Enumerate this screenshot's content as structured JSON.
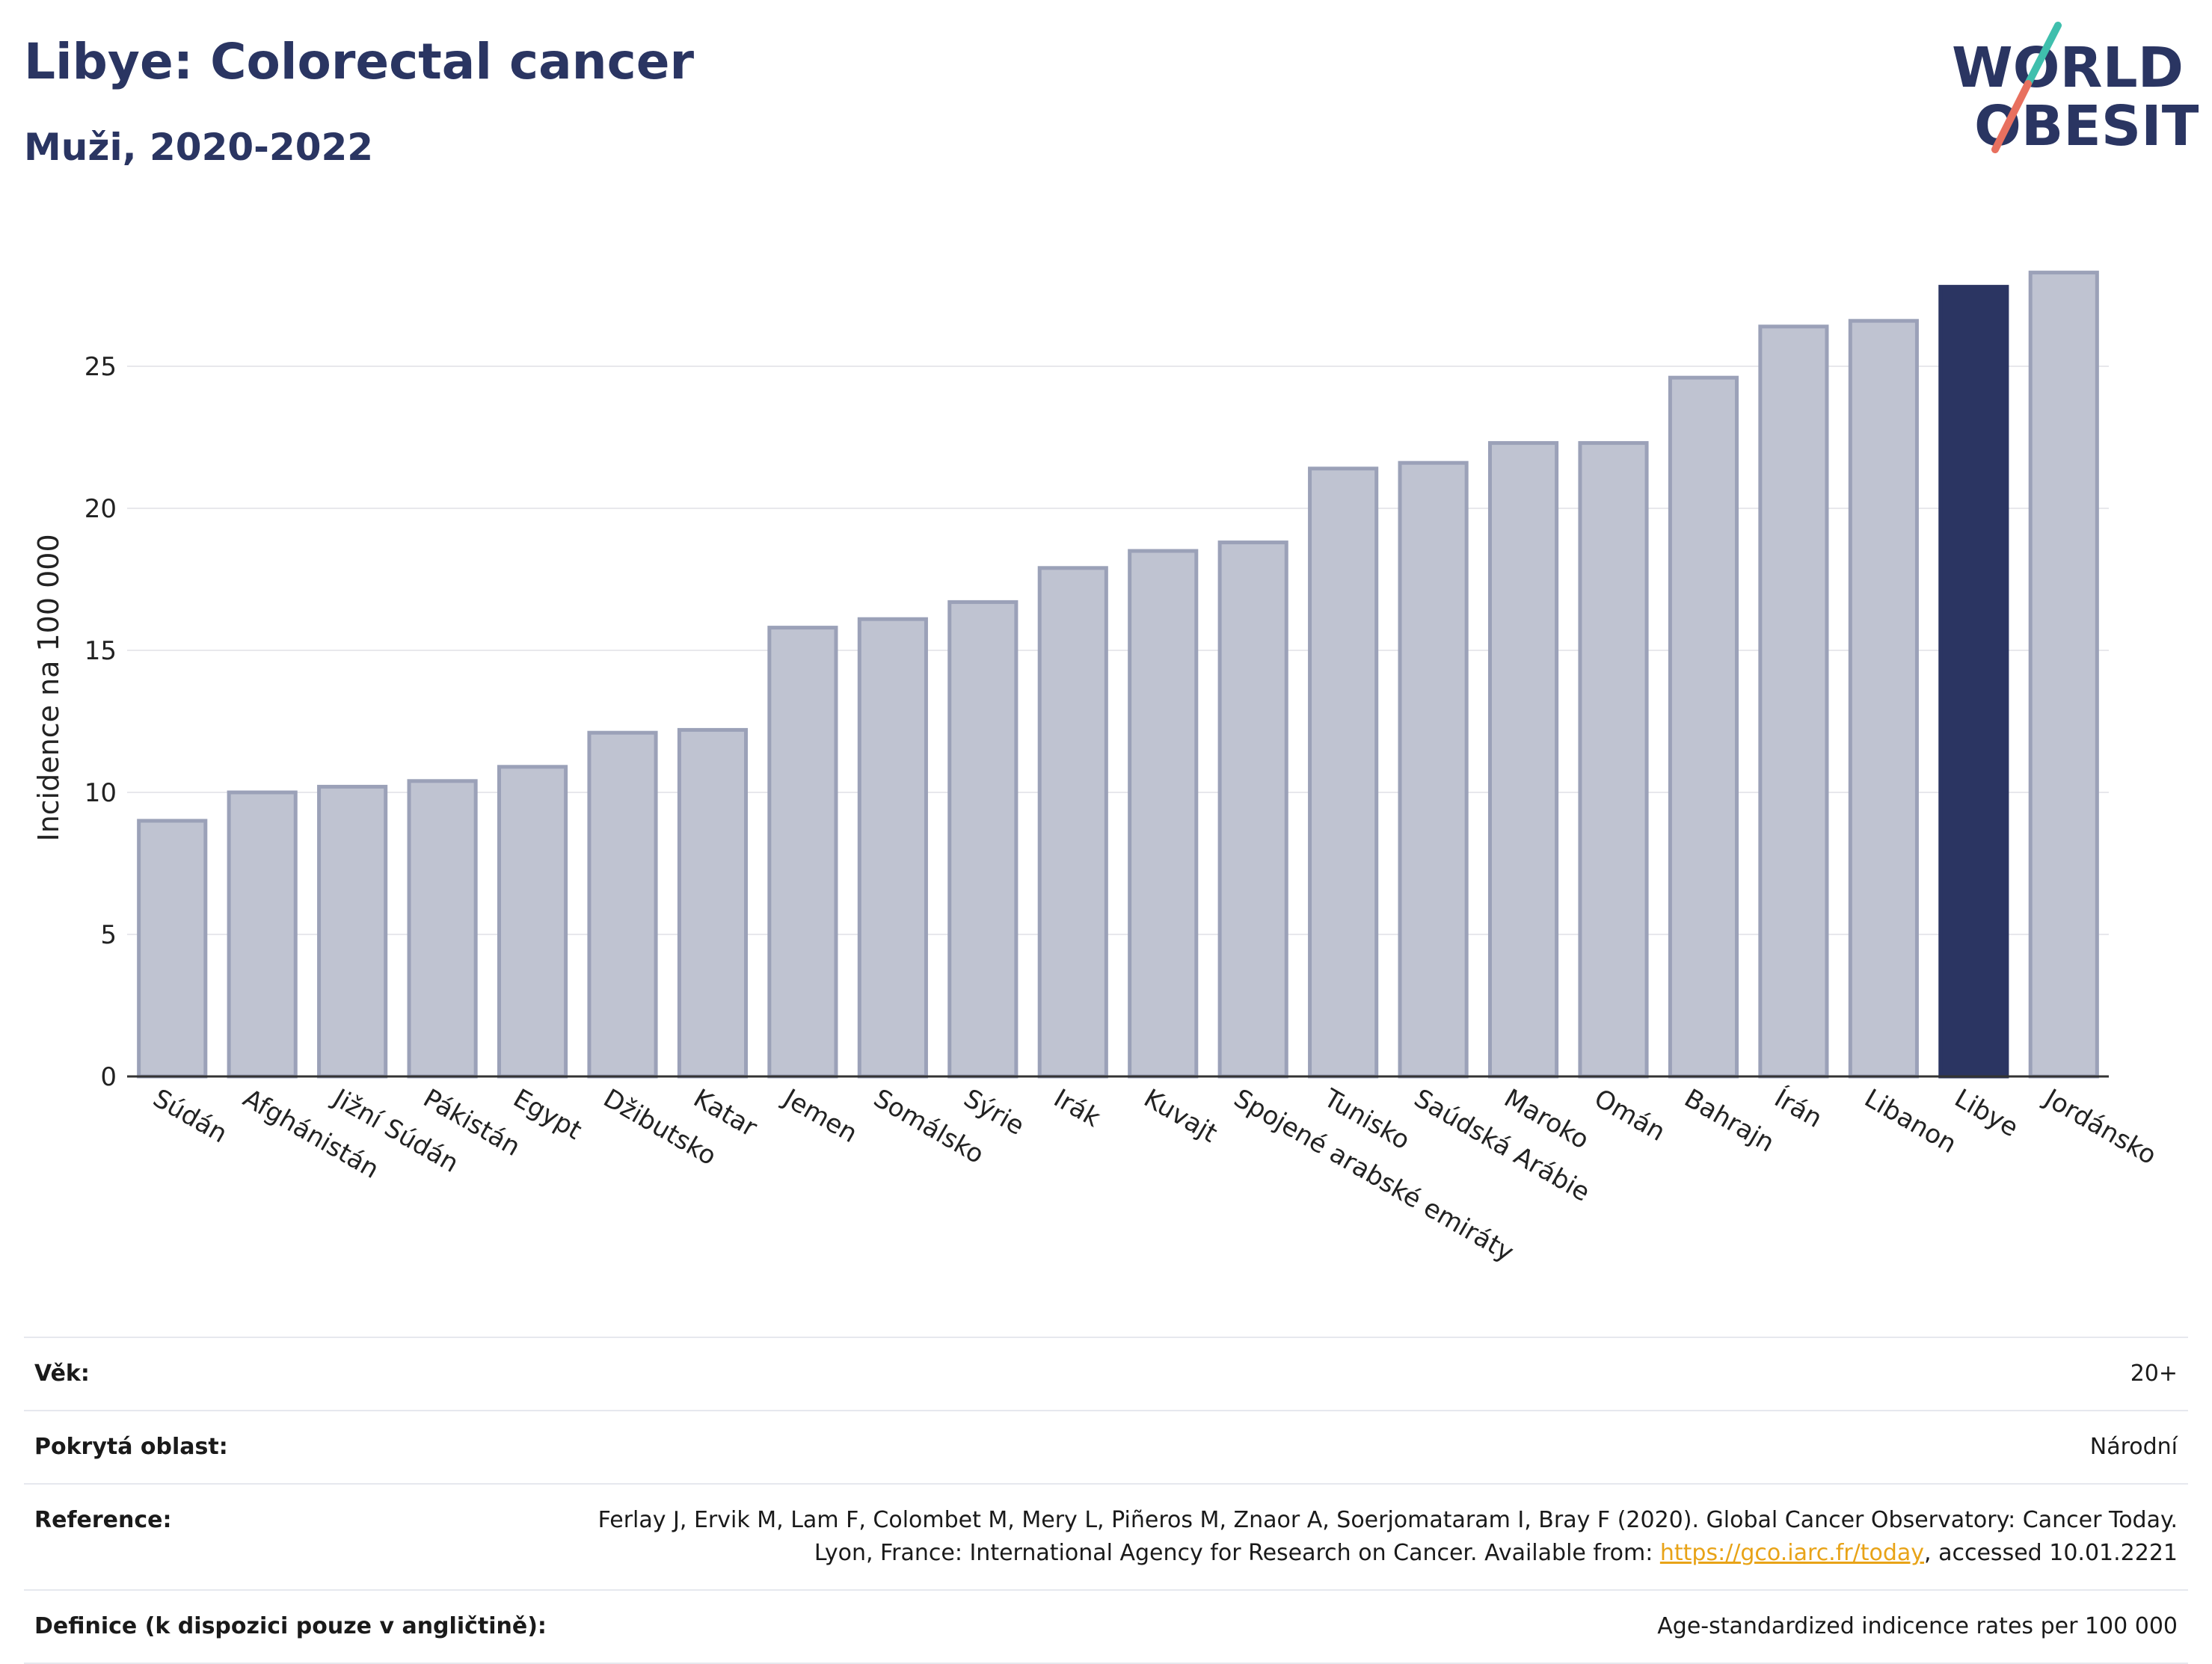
{
  "header": {
    "title": "Libye: Colorectal cancer",
    "subtitle": "Muži, 2020-2022"
  },
  "logo": {
    "line1": "WORLD",
    "line2": "OBESITY",
    "accent_colors": [
      "#3fbfad",
      "#e8705f"
    ]
  },
  "chart_data": {
    "type": "bar",
    "categories": [
      "Súdán",
      "Afghánistán",
      "Jižní Súdán",
      "Pákistán",
      "Egypt",
      "Džibutsko",
      "Katar",
      "Jemen",
      "Somálsko",
      "Sýrie",
      "Irák",
      "Kuvajt",
      "Spojené arabské emiráty",
      "Tunisko",
      "Saúdská Arábie",
      "Maroko",
      "Omán",
      "Bahrajn",
      "Írán",
      "Libanon",
      "Libye",
      "Jordánsko"
    ],
    "values": [
      9.0,
      10.0,
      10.2,
      10.4,
      10.9,
      12.1,
      12.2,
      15.8,
      16.1,
      16.7,
      17.9,
      18.5,
      18.8,
      21.4,
      21.6,
      22.3,
      22.3,
      24.6,
      26.4,
      26.6,
      27.8,
      28.3
    ],
    "highlight": "Libye",
    "ylabel": "Incidence na 100 000",
    "xlabel": "",
    "ylim": [
      0,
      30
    ],
    "yticks": [
      0,
      5,
      10,
      15,
      20,
      25
    ],
    "grid": true,
    "colors": {
      "bar": "#bfc3d1",
      "bar_border": "#9ba1b8",
      "highlight": "#2b3562",
      "grid": "#e8e8ec"
    }
  },
  "meta": {
    "rows": [
      {
        "label": "Věk:",
        "value": "20+"
      },
      {
        "label": "Pokrytá oblast:",
        "value": "Národní"
      },
      {
        "label": "Reference:",
        "value_before": "Ferlay J, Ervik M, Lam F, Colombet M, Mery L, Piñeros M, Znaor A, Soerjomataram I, Bray F (2020). Global Cancer Observatory: Cancer Today. Lyon, France: International Agency for Research on Cancer. Available from: ",
        "link": "https://gco.iarc.fr/today",
        "value_after": ", accessed 10.01.2221"
      },
      {
        "label": "Definice (k dispozici pouze v angličtině):",
        "value": "Age-standardized indicence rates per 100 000"
      }
    ]
  }
}
